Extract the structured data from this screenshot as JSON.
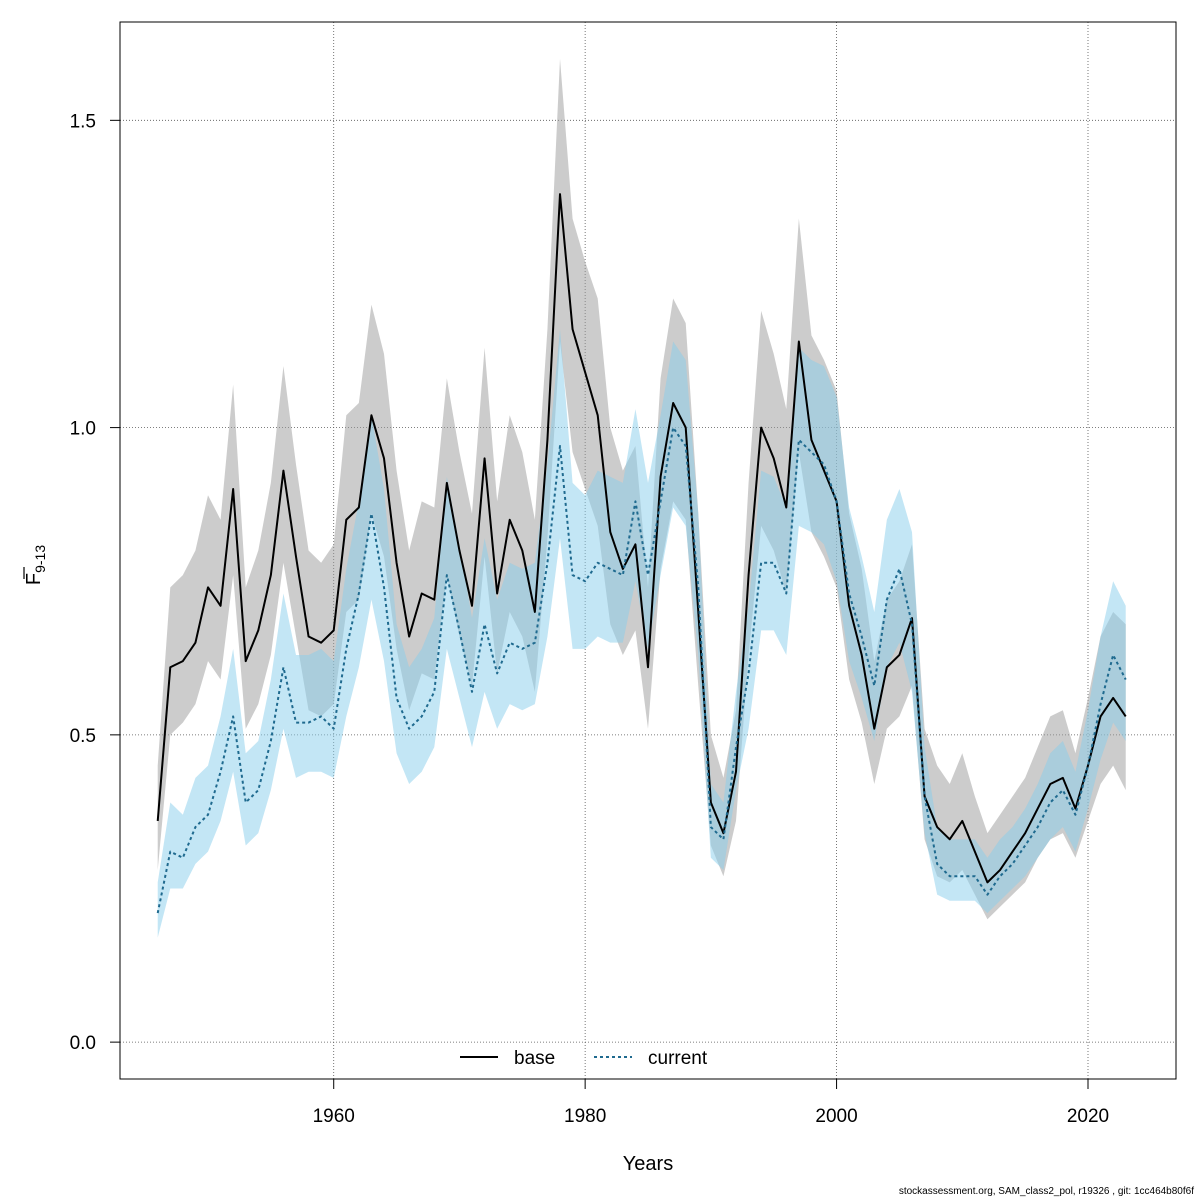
{
  "chart_data": {
    "type": "line",
    "title": "",
    "xlabel": "Years",
    "ylabel": {
      "symbol": "F",
      "subscript": "9-13"
    },
    "xlim": [
      1943,
      2027
    ],
    "ylim": [
      -0.06,
      1.66
    ],
    "xticks": [
      1960,
      1980,
      2000,
      2020
    ],
    "xtick_labels": [
      "1960",
      "1980",
      "2000",
      "2020"
    ],
    "yticks": [
      0,
      0.5,
      1,
      1.5
    ],
    "ytick_labels": [
      "0.0",
      "0.5",
      "1.0",
      "1.5"
    ],
    "grid": true,
    "legend_position": "bottom-center",
    "x": [
      1946,
      1947,
      1948,
      1949,
      1950,
      1951,
      1952,
      1953,
      1954,
      1955,
      1956,
      1957,
      1958,
      1959,
      1960,
      1961,
      1962,
      1963,
      1964,
      1965,
      1966,
      1967,
      1968,
      1969,
      1970,
      1971,
      1972,
      1973,
      1974,
      1975,
      1976,
      1977,
      1978,
      1979,
      1980,
      1981,
      1982,
      1983,
      1984,
      1985,
      1986,
      1987,
      1988,
      1989,
      1990,
      1991,
      1992,
      1993,
      1994,
      1995,
      1996,
      1997,
      1998,
      1999,
      2000,
      2001,
      2002,
      2003,
      2004,
      2005,
      2006,
      2007,
      2008,
      2009,
      2010,
      2011,
      2012,
      2013,
      2014,
      2015,
      2016,
      2017,
      2018,
      2019,
      2020,
      2021,
      2022,
      2023
    ],
    "series": [
      {
        "name": "base",
        "line_style": "solid",
        "line_color": "#000000",
        "band_color": "#999999",
        "values": [
          0.36,
          0.61,
          0.62,
          0.65,
          0.74,
          0.71,
          0.9,
          0.62,
          0.67,
          0.76,
          0.93,
          0.79,
          0.66,
          0.65,
          0.67,
          0.85,
          0.87,
          1.02,
          0.95,
          0.78,
          0.66,
          0.73,
          0.72,
          0.91,
          0.8,
          0.71,
          0.95,
          0.73,
          0.85,
          0.8,
          0.7,
          0.98,
          1.38,
          1.16,
          1.09,
          1.02,
          0.83,
          0.77,
          0.81,
          0.61,
          0.92,
          1.04,
          1.0,
          0.7,
          0.39,
          0.34,
          0.44,
          0.76,
          1.0,
          0.95,
          0.87,
          1.14,
          0.98,
          0.93,
          0.88,
          0.71,
          0.63,
          0.51,
          0.61,
          0.63,
          0.69,
          0.4,
          0.35,
          0.33,
          0.36,
          0.31,
          0.26,
          0.28,
          0.31,
          0.34,
          0.38,
          0.42,
          0.43,
          0.38,
          0.45,
          0.53,
          0.56,
          0.53
        ],
        "upper": [
          0.45,
          0.74,
          0.76,
          0.8,
          0.89,
          0.85,
          1.07,
          0.74,
          0.8,
          0.91,
          1.1,
          0.94,
          0.8,
          0.78,
          0.81,
          1.02,
          1.04,
          1.2,
          1.12,
          0.93,
          0.8,
          0.88,
          0.87,
          1.08,
          0.96,
          0.86,
          1.13,
          0.88,
          1.02,
          0.96,
          0.85,
          1.16,
          1.6,
          1.34,
          1.27,
          1.21,
          1.0,
          0.93,
          0.97,
          0.74,
          1.08,
          1.21,
          1.17,
          0.86,
          0.5,
          0.43,
          0.54,
          0.91,
          1.19,
          1.12,
          1.03,
          1.34,
          1.15,
          1.11,
          1.06,
          0.86,
          0.77,
          0.62,
          0.72,
          0.75,
          0.81,
          0.51,
          0.45,
          0.42,
          0.47,
          0.4,
          0.34,
          0.37,
          0.4,
          0.43,
          0.48,
          0.53,
          0.54,
          0.47,
          0.56,
          0.66,
          0.7,
          0.68
        ],
        "lower": [
          0.28,
          0.5,
          0.52,
          0.55,
          0.62,
          0.59,
          0.76,
          0.51,
          0.55,
          0.63,
          0.78,
          0.66,
          0.54,
          0.53,
          0.55,
          0.7,
          0.72,
          0.86,
          0.79,
          0.64,
          0.54,
          0.6,
          0.59,
          0.76,
          0.66,
          0.58,
          0.79,
          0.6,
          0.7,
          0.66,
          0.57,
          0.82,
          1.14,
          0.96,
          0.9,
          0.84,
          0.68,
          0.63,
          0.67,
          0.51,
          0.77,
          0.88,
          0.85,
          0.58,
          0.32,
          0.27,
          0.36,
          0.63,
          0.84,
          0.8,
          0.73,
          0.96,
          0.83,
          0.79,
          0.74,
          0.59,
          0.52,
          0.42,
          0.51,
          0.53,
          0.58,
          0.33,
          0.27,
          0.26,
          0.28,
          0.24,
          0.2,
          0.22,
          0.24,
          0.26,
          0.3,
          0.33,
          0.34,
          0.3,
          0.36,
          0.42,
          0.45,
          0.41
        ]
      },
      {
        "name": "current",
        "line_style": "dotted",
        "line_color": "#1f6a8f",
        "band_color": "#87ceeb",
        "values": [
          0.21,
          0.31,
          0.3,
          0.35,
          0.37,
          0.44,
          0.53,
          0.39,
          0.41,
          0.49,
          0.61,
          0.52,
          0.52,
          0.53,
          0.51,
          0.64,
          0.73,
          0.86,
          0.74,
          0.56,
          0.51,
          0.53,
          0.57,
          0.76,
          0.67,
          0.57,
          0.68,
          0.6,
          0.65,
          0.64,
          0.65,
          0.78,
          0.97,
          0.76,
          0.75,
          0.78,
          0.77,
          0.76,
          0.88,
          0.76,
          0.88,
          1.0,
          0.97,
          0.74,
          0.35,
          0.33,
          0.48,
          0.6,
          0.78,
          0.78,
          0.73,
          0.98,
          0.96,
          0.94,
          0.88,
          0.73,
          0.66,
          0.58,
          0.72,
          0.77,
          0.68,
          0.4,
          0.29,
          0.27,
          0.27,
          0.27,
          0.24,
          0.27,
          0.29,
          0.32,
          0.35,
          0.39,
          0.41,
          0.37,
          0.45,
          0.55,
          0.63,
          0.59
        ],
        "upper": [
          0.26,
          0.39,
          0.37,
          0.43,
          0.45,
          0.53,
          0.64,
          0.47,
          0.49,
          0.59,
          0.73,
          0.63,
          0.63,
          0.64,
          0.62,
          0.77,
          0.88,
          1.02,
          0.9,
          0.68,
          0.61,
          0.64,
          0.69,
          0.92,
          0.81,
          0.69,
          0.82,
          0.72,
          0.78,
          0.77,
          0.78,
          0.94,
          1.16,
          0.91,
          0.89,
          0.93,
          0.92,
          0.91,
          1.03,
          0.91,
          1.02,
          1.14,
          1.11,
          0.86,
          0.42,
          0.39,
          0.57,
          0.71,
          0.93,
          0.92,
          0.87,
          1.13,
          1.11,
          1.1,
          1.05,
          0.87,
          0.79,
          0.7,
          0.85,
          0.9,
          0.83,
          0.48,
          0.35,
          0.33,
          0.33,
          0.33,
          0.3,
          0.33,
          0.35,
          0.38,
          0.42,
          0.47,
          0.49,
          0.44,
          0.54,
          0.66,
          0.75,
          0.71
        ],
        "lower": [
          0.17,
          0.25,
          0.25,
          0.29,
          0.31,
          0.36,
          0.44,
          0.32,
          0.34,
          0.41,
          0.51,
          0.43,
          0.44,
          0.44,
          0.43,
          0.53,
          0.61,
          0.72,
          0.62,
          0.47,
          0.42,
          0.44,
          0.48,
          0.64,
          0.56,
          0.48,
          0.57,
          0.51,
          0.55,
          0.54,
          0.55,
          0.66,
          0.82,
          0.64,
          0.64,
          0.66,
          0.65,
          0.65,
          0.75,
          0.64,
          0.76,
          0.87,
          0.84,
          0.63,
          0.3,
          0.28,
          0.41,
          0.51,
          0.67,
          0.67,
          0.63,
          0.84,
          0.83,
          0.81,
          0.75,
          0.62,
          0.56,
          0.49,
          0.61,
          0.65,
          0.57,
          0.34,
          0.24,
          0.23,
          0.23,
          0.23,
          0.21,
          0.23,
          0.25,
          0.27,
          0.3,
          0.33,
          0.35,
          0.31,
          0.38,
          0.46,
          0.52,
          0.49
        ]
      }
    ]
  },
  "footer": "stockassessment.org, SAM_class2_pol, r19326 , git: 1cc464b80f6f"
}
